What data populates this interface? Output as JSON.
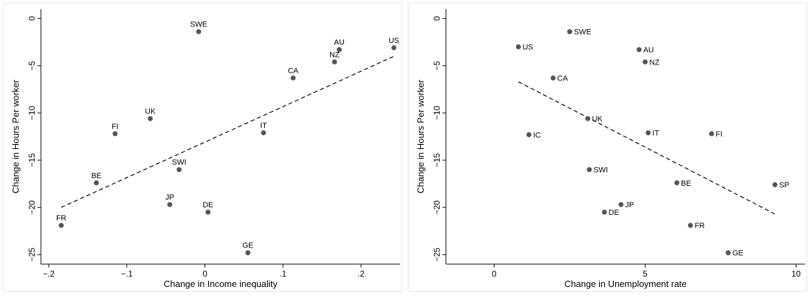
{
  "chart_data": [
    {
      "type": "scatter",
      "xlabel": "Change in Income inequality",
      "ylabel": "Change in Hours Per worker",
      "xlim": [
        -0.21,
        0.25
      ],
      "ylim": [
        -26,
        1
      ],
      "xticks": [
        -0.2,
        -0.1,
        0,
        0.1,
        0.2
      ],
      "xtick_labels": [
        "−.2",
        "−.1",
        "0",
        ".1",
        ".2"
      ],
      "yticks": [
        0,
        -5,
        -10,
        -15,
        -20,
        -25
      ],
      "ytick_labels": [
        "0",
        "−5",
        "−10",
        "−15",
        "−20",
        "−25"
      ],
      "label_position": "above",
      "points": [
        {
          "label": "SWE",
          "x": -0.008,
          "y": -1.4
        },
        {
          "label": "AU",
          "x": 0.172,
          "y": -3.3
        },
        {
          "label": "US",
          "x": 0.242,
          "y": -3.1
        },
        {
          "label": "NZ",
          "x": 0.166,
          "y": -4.6
        },
        {
          "label": "CA",
          "x": 0.113,
          "y": -6.3
        },
        {
          "label": "UK",
          "x": -0.07,
          "y": -10.6
        },
        {
          "label": "FI",
          "x": -0.115,
          "y": -12.2
        },
        {
          "label": "IT",
          "x": 0.075,
          "y": -12.1
        },
        {
          "label": "SWI",
          "x": -0.033,
          "y": -16.0
        },
        {
          "label": "BE",
          "x": -0.139,
          "y": -17.4
        },
        {
          "label": "JP",
          "x": -0.045,
          "y": -19.7
        },
        {
          "label": "DE",
          "x": 0.004,
          "y": -20.5
        },
        {
          "label": "FR",
          "x": -0.184,
          "y": -21.9
        },
        {
          "label": "GE",
          "x": 0.055,
          "y": -24.8
        }
      ],
      "fit_line": {
        "style": "dashed",
        "x": [
          -0.184,
          0.242
        ],
        "y": [
          -20.0,
          -4.0
        ]
      },
      "grid": false,
      "colors": {
        "marker": "#555555",
        "line": "#000000"
      }
    },
    {
      "type": "scatter",
      "xlabel": "Change in Unemployment rate",
      "ylabel": "Change in Hours Per worker",
      "xlim": [
        -1.6,
        10.3
      ],
      "ylim": [
        -26,
        1
      ],
      "xticks": [
        0,
        5,
        10
      ],
      "xtick_labels": [
        "0",
        "5",
        "10"
      ],
      "yticks": [
        0,
        -5,
        -10,
        -15,
        -20,
        -25
      ],
      "ytick_labels": [
        "0",
        "−5",
        "−10",
        "−15",
        "−20",
        "−25"
      ],
      "label_position": "right",
      "points": [
        {
          "label": "SWE",
          "x": 2.5,
          "y": -1.4
        },
        {
          "label": "US",
          "x": 0.8,
          "y": -3.0
        },
        {
          "label": "AU",
          "x": 4.8,
          "y": -3.3
        },
        {
          "label": "NZ",
          "x": 5.0,
          "y": -4.6
        },
        {
          "label": "CA",
          "x": 1.95,
          "y": -6.3
        },
        {
          "label": "UK",
          "x": 3.1,
          "y": -10.6
        },
        {
          "label": "IC",
          "x": 1.15,
          "y": -12.3
        },
        {
          "label": "IT",
          "x": 5.1,
          "y": -12.1
        },
        {
          "label": "FI",
          "x": 7.2,
          "y": -12.2
        },
        {
          "label": "SWI",
          "x": 3.15,
          "y": -16.0
        },
        {
          "label": "BE",
          "x": 6.05,
          "y": -17.4
        },
        {
          "label": "SP",
          "x": 9.3,
          "y": -17.6
        },
        {
          "label": "JP",
          "x": 4.2,
          "y": -19.7
        },
        {
          "label": "DE",
          "x": 3.65,
          "y": -20.5
        },
        {
          "label": "FR",
          "x": 6.5,
          "y": -21.9
        },
        {
          "label": "GE",
          "x": 7.75,
          "y": -24.8
        }
      ],
      "fit_line": {
        "style": "dashed",
        "x": [
          0.8,
          9.3
        ],
        "y": [
          -6.7,
          -20.7
        ]
      },
      "grid": false,
      "colors": {
        "marker": "#555555",
        "line": "#000000"
      }
    }
  ]
}
